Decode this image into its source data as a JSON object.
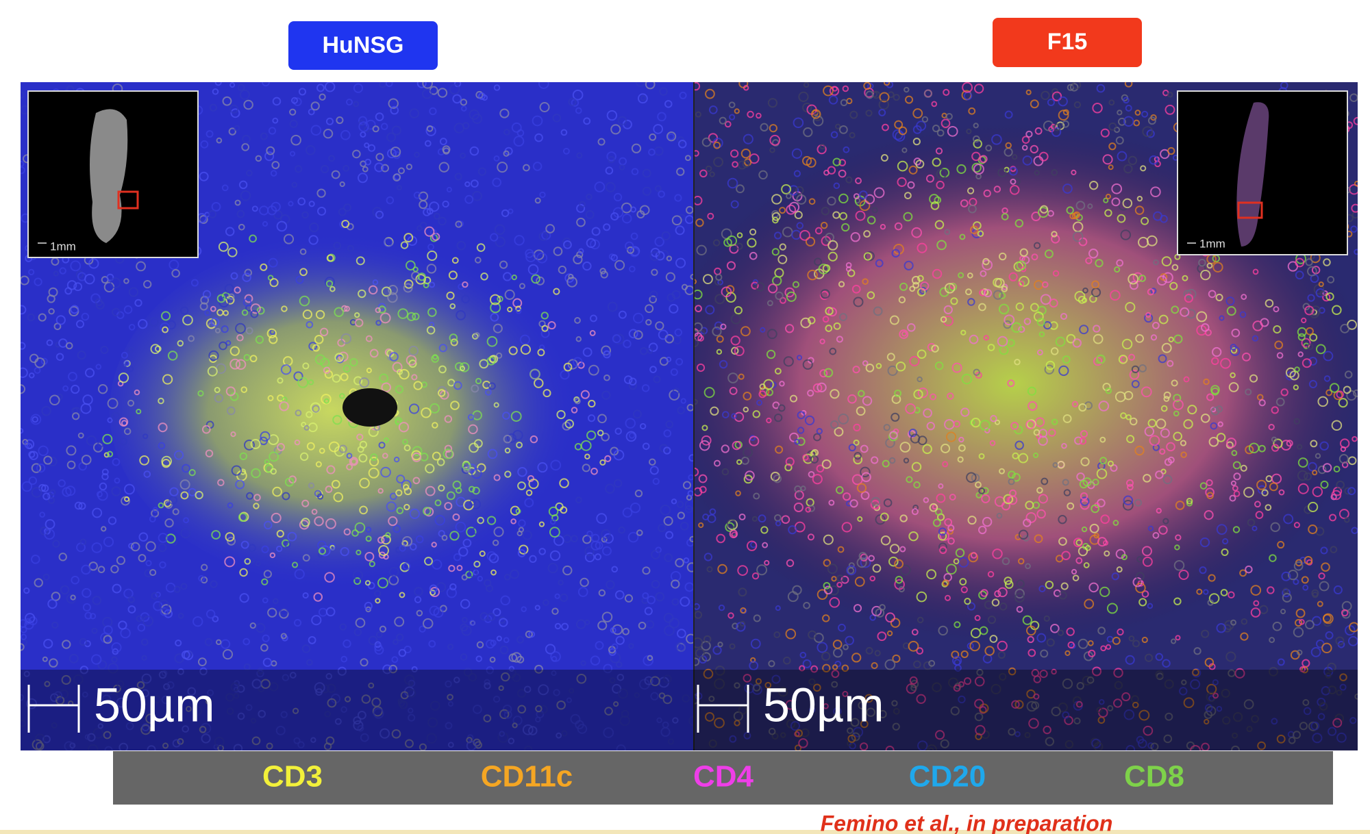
{
  "panels": [
    {
      "label": "HuNSG",
      "inset_scale": "1mm",
      "scale_bar": "50µm"
    },
    {
      "label": "F15",
      "inset_scale": "1mm",
      "scale_bar": "50µm"
    }
  ],
  "legend": [
    "CD3",
    "CD11c",
    "CD4",
    "CD20",
    "CD8"
  ],
  "citation": "Femino et al., in preparation"
}
